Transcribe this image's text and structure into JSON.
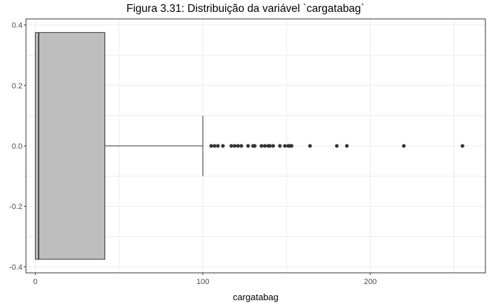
{
  "title": "Figura 3.31: Distribuição da variável `cargatabag`",
  "chart_data": {
    "type": "boxplot",
    "orientation": "horizontal",
    "title": "Figura 3.31: Distribuição da variável `cargatabag`",
    "xlabel": "cargatabag",
    "ylabel": "",
    "xlim": [
      -5.6,
      268.7
    ],
    "ylim": [
      -0.42,
      0.42
    ],
    "x_ticks": [
      0,
      100,
      200
    ],
    "y_ticks": [
      -0.4,
      -0.2,
      0.0,
      0.2,
      0.4
    ],
    "y_tick_labels": [
      "-0.4",
      "-0.2",
      "0.0",
      "0.2",
      "0.4"
    ],
    "grid": true,
    "box": {
      "min": 0,
      "q1": 0,
      "median": 2,
      "q3": 41.5,
      "whisker_high": 100,
      "y_extent": [
        -0.375,
        0.375
      ]
    },
    "outliers": [
      105,
      107,
      109,
      112,
      117,
      119,
      121,
      123,
      127,
      130,
      131,
      135,
      137,
      139,
      140,
      142,
      146,
      149,
      151,
      152,
      153,
      164,
      180,
      186,
      220,
      255
    ],
    "colors": {
      "box_fill": "#bebebe",
      "line": "#333333",
      "points": "#333333",
      "grid": "#ebebeb",
      "axis_text": "#4d4d4d"
    }
  }
}
